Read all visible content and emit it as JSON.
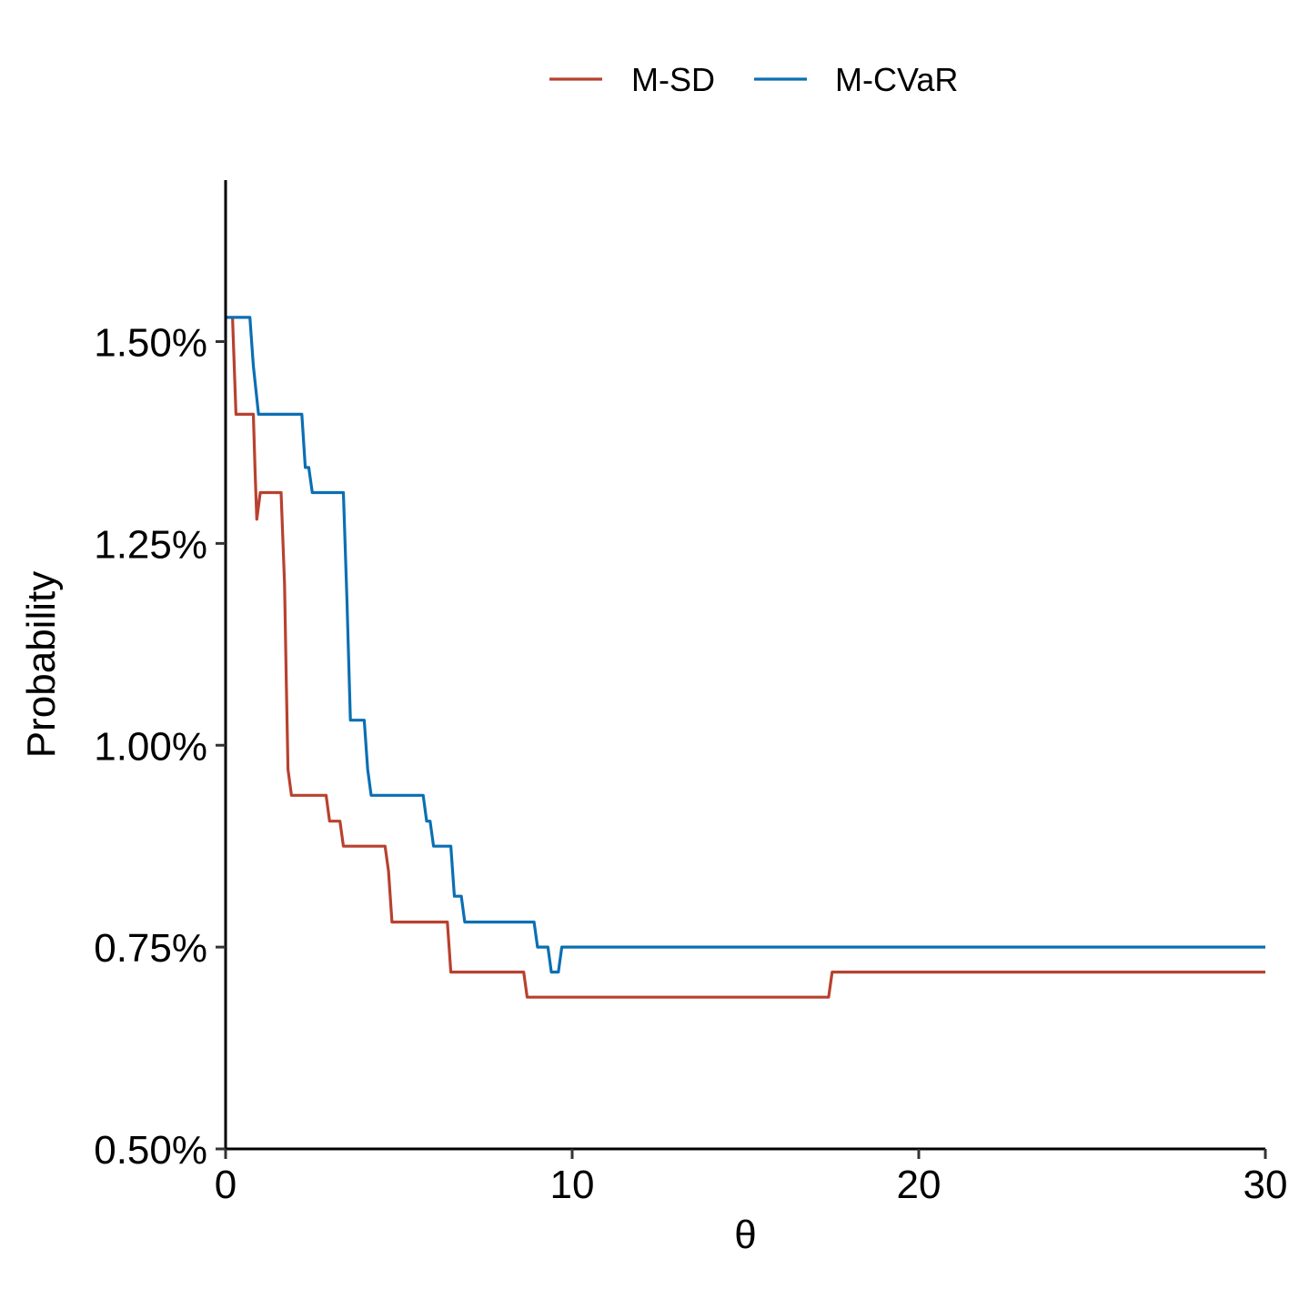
{
  "chart_data": {
    "type": "line",
    "title": "",
    "xlabel": "θ",
    "ylabel": "Probability",
    "xlim": [
      0,
      30
    ],
    "ylim": [
      0.5,
      1.7
    ],
    "xticks": [
      0,
      10,
      20,
      30
    ],
    "xtick_labels": [
      "0",
      "10",
      "20",
      "30"
    ],
    "yticks": [
      0.5,
      0.75,
      1.0,
      1.25,
      1.5
    ],
    "ytick_labels": [
      "0.50%",
      "0.75%",
      "1.00%",
      "1.25%",
      "1.50%"
    ],
    "grid": false,
    "legend_position": "top",
    "series": [
      {
        "name": "M-SD",
        "color": "#b8412f",
        "x": [
          0.2,
          0.3,
          0.8,
          0.85,
          0.9,
          1.0,
          1.1,
          1.6,
          1.7,
          1.75,
          1.8,
          1.9,
          2.9,
          3.0,
          3.3,
          3.4,
          4.6,
          4.7,
          4.8,
          6.4,
          6.5,
          8.6,
          8.7,
          17.4,
          17.5,
          30.0
        ],
        "y": [
          1.53,
          1.41,
          1.41,
          1.34,
          1.28,
          1.313,
          1.313,
          1.313,
          1.2,
          1.08,
          0.97,
          0.938,
          0.938,
          0.906,
          0.906,
          0.875,
          0.875,
          0.844,
          0.781,
          0.781,
          0.719,
          0.719,
          0.688,
          0.688,
          0.719,
          0.719
        ]
      },
      {
        "name": "M-CVaR",
        "color": "#0b6fb3",
        "x": [
          0.0,
          0.7,
          0.8,
          0.95,
          2.2,
          2.3,
          2.4,
          2.5,
          3.4,
          3.5,
          3.6,
          3.8,
          4.0,
          4.1,
          4.2,
          5.7,
          5.8,
          5.9,
          6.0,
          6.5,
          6.6,
          6.8,
          6.9,
          8.9,
          9.0,
          9.3,
          9.4,
          9.6,
          9.7,
          30.0
        ],
        "y": [
          1.53,
          1.53,
          1.47,
          1.41,
          1.41,
          1.344,
          1.344,
          1.313,
          1.313,
          1.18,
          1.031,
          1.031,
          1.031,
          0.97,
          0.938,
          0.938,
          0.906,
          0.906,
          0.875,
          0.875,
          0.813,
          0.813,
          0.781,
          0.781,
          0.75,
          0.75,
          0.719,
          0.719,
          0.75,
          0.75
        ]
      }
    ]
  }
}
